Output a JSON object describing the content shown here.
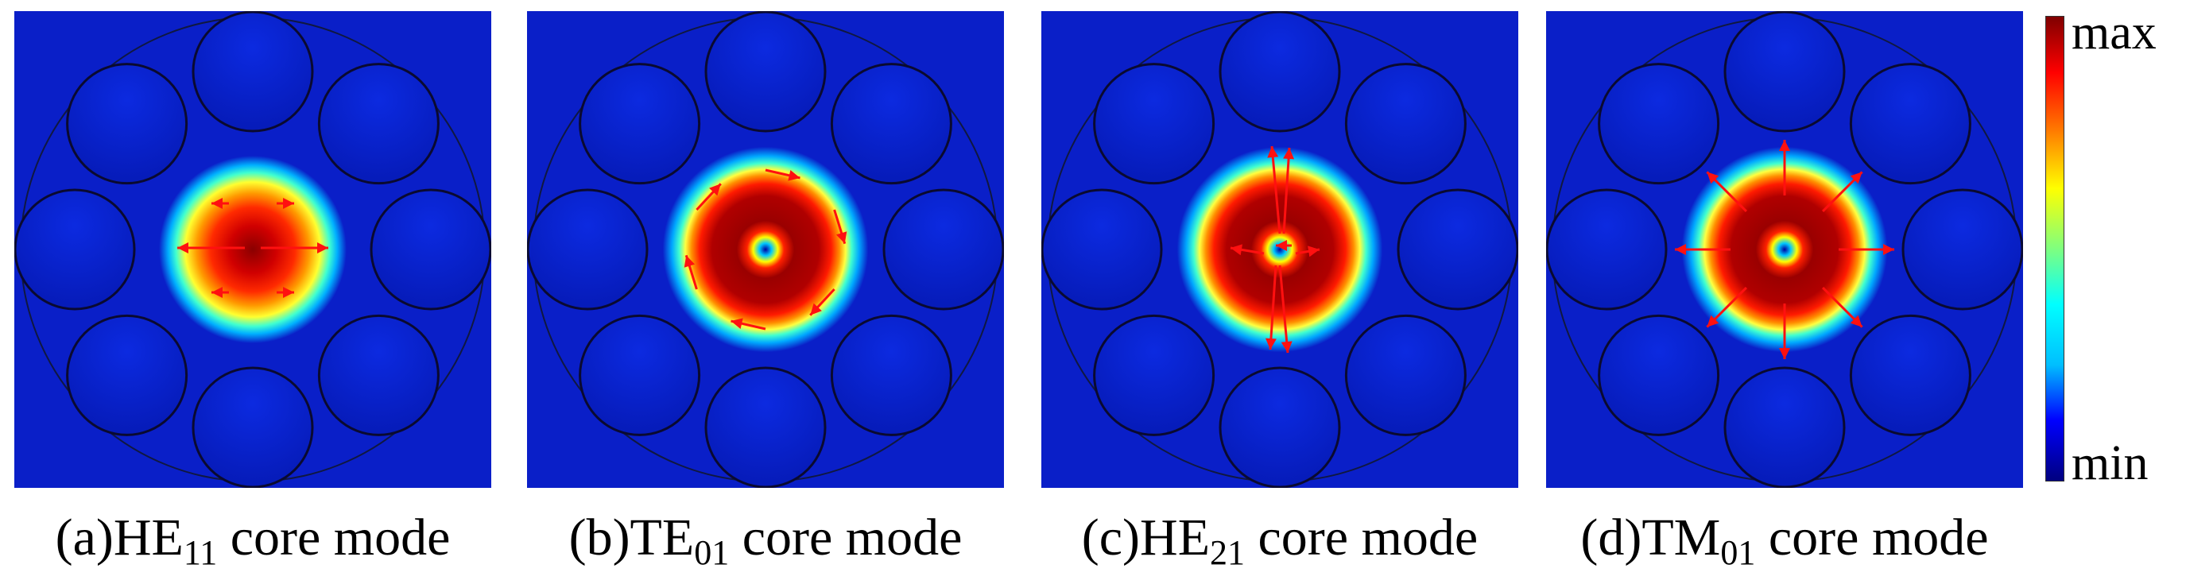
{
  "panels": [
    {
      "id": "a",
      "caption_prefix": "(a)HE",
      "caption_sub": "11",
      "caption_suffix": " core mode",
      "field": "spot",
      "arrows": "horizontal"
    },
    {
      "id": "b",
      "caption_prefix": "(b)TE",
      "caption_sub": "01",
      "caption_suffix": " core mode",
      "field": "ring",
      "arrows": "azimuthal"
    },
    {
      "id": "c",
      "caption_prefix": "(c)HE",
      "caption_sub": "21",
      "caption_suffix": " core mode",
      "field": "ring",
      "arrows": "hybrid"
    },
    {
      "id": "d",
      "caption_prefix": "(d)TM",
      "caption_sub": "01",
      "caption_suffix": " core mode",
      "field": "ring",
      "arrows": "radial"
    }
  ],
  "colorbar": {
    "max_label": "max",
    "min_label": "min",
    "colors": [
      "#00007f",
      "#0000ff",
      "#00bfff",
      "#00ffff",
      "#7fff7f",
      "#ffff00",
      "#ff7f00",
      "#ff0000",
      "#7f0000"
    ]
  },
  "background_color": "#0a1fc8",
  "arrow_color": "#ff1010",
  "capillary_count": 8
}
